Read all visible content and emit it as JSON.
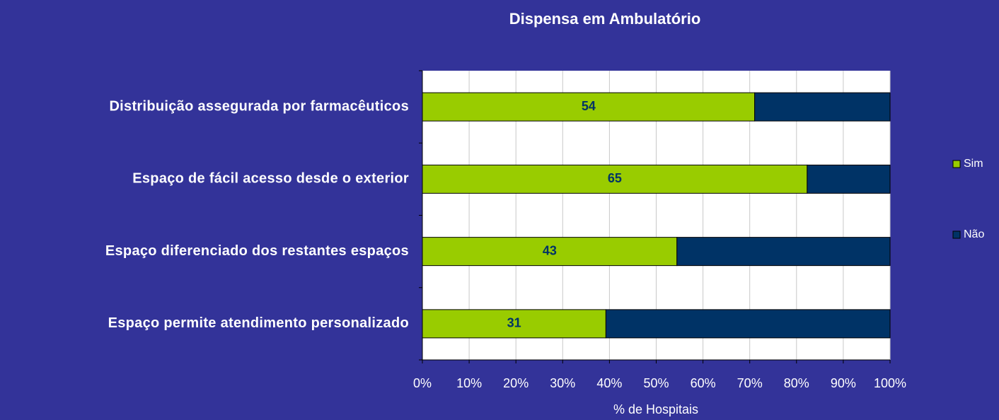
{
  "chart_data": {
    "type": "bar",
    "orientation": "horizontal",
    "stack": "percent",
    "title": "Dispensa em Ambulatório",
    "x_label": "% de Hospitais",
    "categories": [
      "Distribuição assegurada por farmacêuticos",
      "Espaço de fácil acesso desde o exterior",
      "Espaço diferenciado dos restantes espaços",
      "Espaço permite atendimento personalizado"
    ],
    "series": [
      {
        "name": "Sim",
        "color": "#99cc00",
        "values": [
          54,
          65,
          43,
          31
        ],
        "show_labels": true
      },
      {
        "name": "Não",
        "color": "#003366",
        "values": [
          22,
          14,
          36,
          48
        ],
        "show_labels": false
      }
    ],
    "xlim": [
      0,
      100
    ],
    "xticks": [
      {
        "value": 0,
        "label": "0%"
      },
      {
        "value": 10,
        "label": "10%"
      },
      {
        "value": 20,
        "label": "20%"
      },
      {
        "value": 30,
        "label": "30%"
      },
      {
        "value": 40,
        "label": "40%"
      },
      {
        "value": 50,
        "label": "50%"
      },
      {
        "value": 60,
        "label": "60%"
      },
      {
        "value": 70,
        "label": "70%"
      },
      {
        "value": 80,
        "label": "80%"
      },
      {
        "value": 90,
        "label": "90%"
      },
      {
        "value": 100,
        "label": "100%"
      }
    ],
    "grid": true,
    "legend": "right"
  }
}
